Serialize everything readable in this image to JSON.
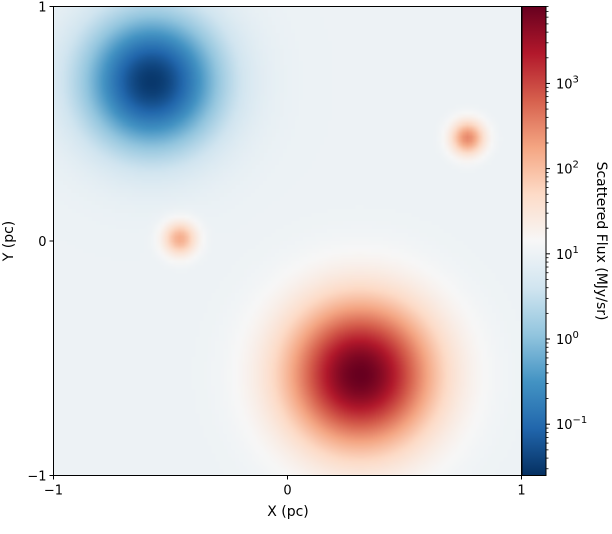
{
  "chart_data": {
    "type": "heatmap",
    "title": "",
    "xlabel": "X (pc)",
    "ylabel": "Y (pc)",
    "xlim": [
      -1,
      1
    ],
    "ylim": [
      -1,
      1
    ],
    "x_ticks": [
      -1,
      0,
      1
    ],
    "x_tick_labels": [
      "−1",
      "0",
      "1"
    ],
    "y_ticks": [
      -1,
      0,
      1
    ],
    "y_tick_labels": [
      "−1",
      "0",
      "1"
    ],
    "grid": false,
    "colormap": "RdBu_r",
    "colorbar": {
      "label": "Scattered Flux (MJy/sr)",
      "scale": "log",
      "range": [
        0.025,
        8000
      ],
      "ticks": [
        0.1,
        1,
        10,
        100,
        1000
      ],
      "tick_labels": [
        {
          "base": "10",
          "exp": "−1"
        },
        {
          "base": "10",
          "exp": "0"
        },
        {
          "base": "10",
          "exp": "1"
        },
        {
          "base": "10",
          "exp": "2"
        },
        {
          "base": "10",
          "exp": "3"
        }
      ]
    },
    "background_level": 10,
    "features": [
      {
        "kind": "sink",
        "x": -0.58,
        "y": 0.68,
        "min_value": 0.03,
        "radius": 0.2
      },
      {
        "kind": "source",
        "x": 0.31,
        "y": -0.57,
        "peak_value": 8000,
        "radius": 0.22
      },
      {
        "kind": "source",
        "x": 0.77,
        "y": 0.44,
        "peak_value": 300,
        "radius": 0.05
      },
      {
        "kind": "source",
        "x": -0.46,
        "y": 0.01,
        "peak_value": 150,
        "radius": 0.05
      }
    ]
  }
}
